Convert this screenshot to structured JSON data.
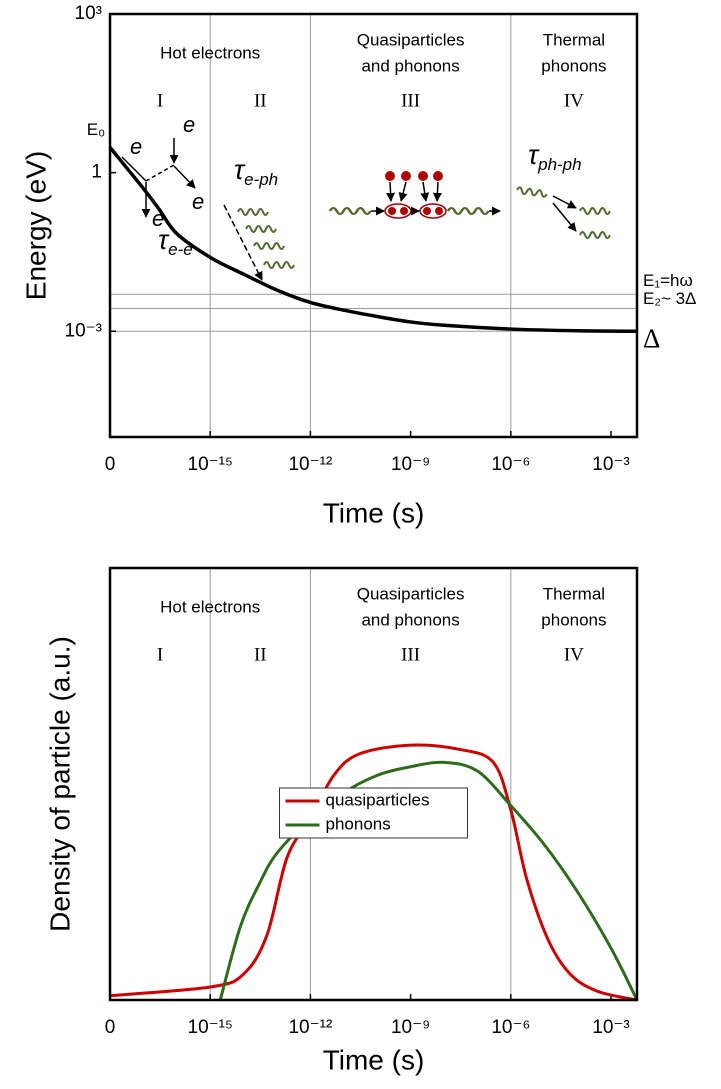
{
  "chart_data": [
    {
      "type": "line",
      "y_label": "Energy (eV)",
      "x_label": "Time (s)",
      "xscale": "log",
      "yscale": "log",
      "xlim": [
        0,
        0.006
      ],
      "xticks": [
        0,
        {
          "value": 1e-15,
          "label": "10⁻¹⁵"
        },
        {
          "value": 1e-12,
          "label": "10⁻¹²"
        },
        {
          "value": 1e-09,
          "label": "10⁻⁹"
        },
        {
          "value": 1e-06,
          "label": "10⁻⁶"
        },
        {
          "value": 0.001,
          "label": "10⁻³"
        }
      ],
      "ylim": [
        1e-05,
        1000
      ],
      "yticks": [
        {
          "value": 0.001,
          "label": "10⁻³"
        },
        1,
        {
          "value": 1000,
          "label": "10³"
        }
      ],
      "boundaries": [
        1e-15,
        1e-12,
        1e-06
      ],
      "groups": [
        [
          "Hot electrons"
        ],
        [
          "Quasiparticles",
          "and phonons"
        ],
        [
          "Thermal",
          "phonons"
        ]
      ],
      "numerals": [
        "I",
        "II",
        "III",
        "IV"
      ],
      "color": "#000000",
      "x": [
        0,
        1e-17,
        3e-17,
        1e-16,
        1e-15,
        1e-14,
        1e-13,
        1e-12,
        1e-11,
        1e-10,
        1e-09,
        1e-08,
        1e-06,
        0.0001,
        0.006
      ],
      "values": [
        3,
        0.5,
        0.2,
        0.07,
        0.025,
        0.012,
        0.006,
        0.0035,
        0.0025,
        0.0019,
        0.0015,
        0.0013,
        0.0011,
        0.00102,
        0.001
      ],
      "start_label": "E₀",
      "reference_lines": [
        {
          "value": 0.005,
          "label": "E₁=hω"
        },
        {
          "value": 0.0027,
          "label": "E₂~ 3Δ"
        },
        {
          "value": 0.001,
          "label": "Δ"
        }
      ],
      "annotations": {
        "electron": [
          "e",
          "e",
          "e",
          "e"
        ],
        "tau": [
          {
            "symbol": "τ",
            "subscript": "e-e"
          },
          {
            "symbol": "τ",
            "subscript": "e-ph"
          },
          {
            "symbol": "τ",
            "subscript": "ph-ph"
          }
        ]
      }
    },
    {
      "type": "line",
      "y_label": "Density of particle (a.u.)",
      "x_label": "Time (s)",
      "xscale": "log",
      "xlim": [
        0,
        0.006
      ],
      "xticks": [
        0,
        {
          "value": 1e-15,
          "label": "10⁻¹⁵"
        },
        {
          "value": 1e-12,
          "label": "10⁻¹²"
        },
        {
          "value": 1e-09,
          "label": "10⁻⁹"
        },
        {
          "value": 1e-06,
          "label": "10⁻⁶"
        },
        {
          "value": 0.001,
          "label": "10⁻³"
        }
      ],
      "ylim": [
        0,
        1
      ],
      "boundaries": [
        1e-15,
        1e-12,
        1e-06
      ],
      "groups": [
        [
          "Hot electrons"
        ],
        [
          "Quasiparticles",
          "and phonons"
        ],
        [
          "Thermal",
          "phonons"
        ]
      ],
      "numerals": [
        "I",
        "II",
        "III",
        "IV"
      ],
      "legend": "center",
      "series": [
        {
          "name": "quasiparticles",
          "color": "#cc0000",
          "x": [
            0,
            1e-15,
            1e-14,
            5e-14,
            2e-13,
            1e-12,
            5e-12,
            3e-11,
            1e-09,
            3e-08,
            3e-07,
            1e-06,
            3e-06,
            1.3e-05,
            6e-05,
            0.0004,
            0.006
          ],
          "values": [
            0.01,
            0.03,
            0.06,
            0.15,
            0.33,
            0.42,
            0.52,
            0.57,
            0.59,
            0.58,
            0.55,
            0.44,
            0.28,
            0.14,
            0.06,
            0.02,
            0
          ]
        },
        {
          "name": "phonons",
          "color": "#2e6b1a",
          "x": [
            2e-15,
            8e-15,
            3e-14,
            1e-13,
            1e-12,
            1e-11,
            1e-10,
            1e-09,
            1e-08,
            1e-07,
            1e-06,
            1e-05,
            0.0001,
            0.001,
            0.006
          ],
          "values": [
            0,
            0.17,
            0.27,
            0.34,
            0.42,
            0.48,
            0.52,
            0.54,
            0.55,
            0.53,
            0.45,
            0.36,
            0.25,
            0.12,
            0
          ]
        }
      ]
    }
  ]
}
